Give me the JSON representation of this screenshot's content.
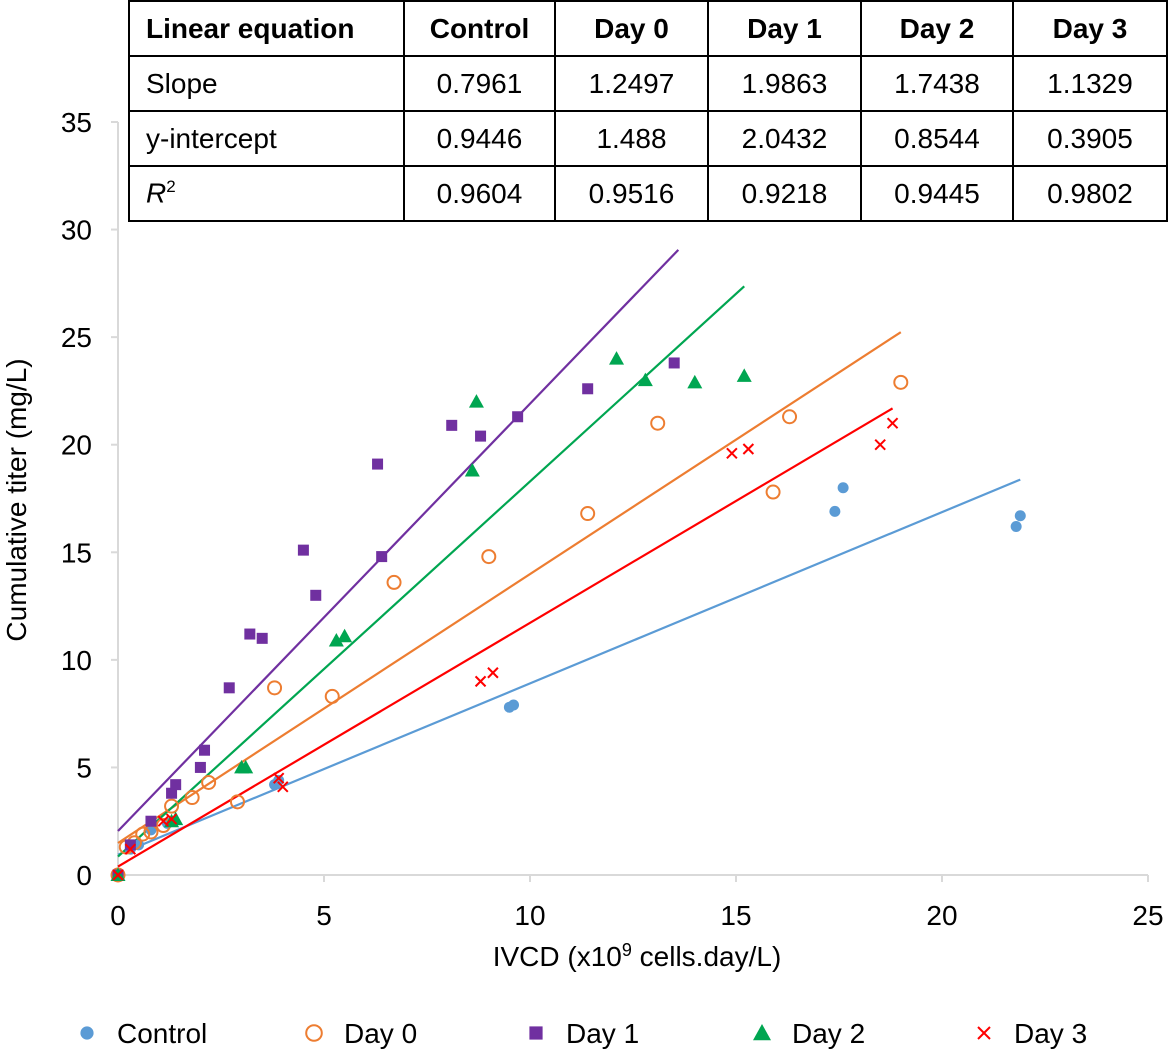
{
  "chart_data": {
    "type": "scatter",
    "xlabel": "IVCD (x10",
    "xlabel_sup": "9",
    "xlabel_rest": " cells.day/L)",
    "ylabel": "Cumulative titer (mg/L)",
    "xlim": [
      0,
      25
    ],
    "ylim": [
      0,
      35
    ],
    "xticks": [
      0,
      5,
      10,
      15,
      20,
      25
    ],
    "yticks": [
      0,
      5,
      10,
      15,
      20,
      25,
      30,
      35
    ],
    "grid": false,
    "legend_position": "bottom",
    "series": [
      {
        "name": "Control",
        "marker": "circle",
        "color": "#5b9bd5",
        "slope": 0.7961,
        "intercept": 0.9446,
        "fit_x": [
          0,
          21.9
        ],
        "points": [
          [
            0,
            0
          ],
          [
            0.3,
            1.2
          ],
          [
            0.5,
            1.4
          ],
          [
            0.8,
            2.1
          ],
          [
            1.2,
            2.4
          ],
          [
            3.8,
            4.2
          ],
          [
            3.9,
            4.4
          ],
          [
            9.5,
            7.8
          ],
          [
            9.6,
            7.9
          ],
          [
            17.4,
            16.9
          ],
          [
            17.6,
            18.0
          ],
          [
            21.8,
            16.2
          ],
          [
            21.9,
            16.7
          ]
        ]
      },
      {
        "name": "Day 0",
        "marker": "open-circle",
        "color": "#ed7d31",
        "slope": 1.2497,
        "intercept": 1.488,
        "fit_x": [
          0,
          19.0
        ],
        "points": [
          [
            0,
            0
          ],
          [
            0.2,
            1.3
          ],
          [
            0.4,
            1.5
          ],
          [
            0.6,
            1.9
          ],
          [
            0.8,
            2.0
          ],
          [
            1.1,
            2.3
          ],
          [
            1.3,
            3.2
          ],
          [
            1.8,
            3.6
          ],
          [
            2.2,
            4.3
          ],
          [
            2.9,
            3.4
          ],
          [
            3.8,
            8.7
          ],
          [
            5.2,
            8.3
          ],
          [
            6.7,
            13.6
          ],
          [
            9.0,
            14.8
          ],
          [
            11.4,
            16.8
          ],
          [
            13.1,
            21.0
          ],
          [
            15.9,
            17.8
          ],
          [
            16.3,
            21.3
          ],
          [
            19.0,
            22.9
          ]
        ]
      },
      {
        "name": "Day 1",
        "marker": "square",
        "color": "#7030a0",
        "slope": 1.9863,
        "intercept": 2.0432,
        "fit_x": [
          0,
          13.6
        ],
        "points": [
          [
            0,
            0
          ],
          [
            0.3,
            1.4
          ],
          [
            0.8,
            2.5
          ],
          [
            1.3,
            3.8
          ],
          [
            1.4,
            4.2
          ],
          [
            2.0,
            5.0
          ],
          [
            2.1,
            5.8
          ],
          [
            2.7,
            8.7
          ],
          [
            3.2,
            11.2
          ],
          [
            3.5,
            11.0
          ],
          [
            4.5,
            15.1
          ],
          [
            4.8,
            13.0
          ],
          [
            6.3,
            19.1
          ],
          [
            6.4,
            14.8
          ],
          [
            8.1,
            20.9
          ],
          [
            8.8,
            20.4
          ],
          [
            9.7,
            21.3
          ],
          [
            11.4,
            22.6
          ],
          [
            13.5,
            23.8
          ]
        ]
      },
      {
        "name": "Day 2",
        "marker": "triangle",
        "color": "#00a651",
        "slope": 1.7438,
        "intercept": 0.8544,
        "fit_x": [
          0,
          15.2
        ],
        "points": [
          [
            0,
            0
          ],
          [
            1.3,
            2.5
          ],
          [
            1.4,
            2.6
          ],
          [
            3.0,
            5.0
          ],
          [
            3.1,
            5.0
          ],
          [
            5.3,
            10.9
          ],
          [
            5.5,
            11.1
          ],
          [
            8.6,
            18.8
          ],
          [
            8.7,
            22.0
          ],
          [
            12.1,
            24.0
          ],
          [
            12.8,
            23.0
          ],
          [
            14.0,
            22.9
          ],
          [
            15.2,
            23.2
          ]
        ]
      },
      {
        "name": "Day 3",
        "marker": "x",
        "color": "#ff0000",
        "slope": 1.1329,
        "intercept": 0.3905,
        "fit_x": [
          0,
          18.8
        ],
        "points": [
          [
            0,
            0
          ],
          [
            0.3,
            1.2
          ],
          [
            1.1,
            2.5
          ],
          [
            1.3,
            2.6
          ],
          [
            3.9,
            4.5
          ],
          [
            4.0,
            4.1
          ],
          [
            8.8,
            9.0
          ],
          [
            9.1,
            9.4
          ],
          [
            14.9,
            19.6
          ],
          [
            15.3,
            19.8
          ],
          [
            18.5,
            20.0
          ],
          [
            18.8,
            21.0
          ]
        ]
      }
    ],
    "table": {
      "headers": [
        "Linear equation",
        "Control",
        "Day 0",
        "Day 1",
        "Day 2",
        "Day 3"
      ],
      "rows": [
        {
          "label": "Slope",
          "values": [
            "0.7961",
            "1.2497",
            "1.9863",
            "1.7438",
            "1.1329"
          ]
        },
        {
          "label": "y-intercept",
          "values": [
            "0.9446",
            "1.488",
            "2.0432",
            "0.8544",
            "0.3905"
          ]
        },
        {
          "label": "R",
          "label_sup": "2",
          "values": [
            "0.9604",
            "0.9516",
            "0.9218",
            "0.9445",
            "0.9802"
          ]
        }
      ]
    }
  }
}
